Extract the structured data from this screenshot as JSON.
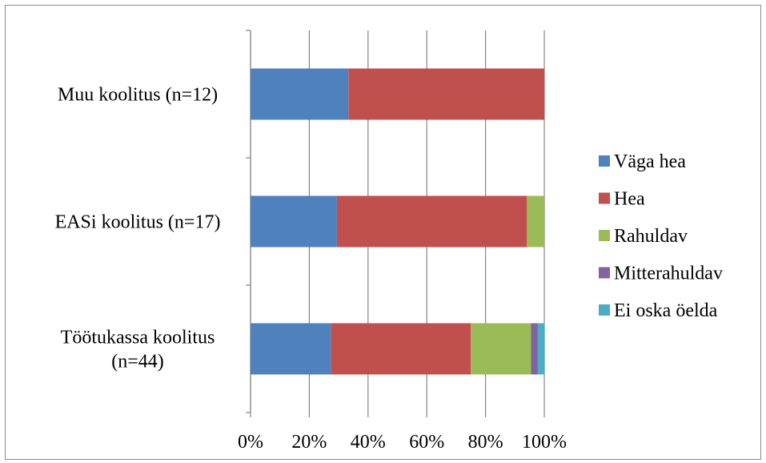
{
  "chart_data": {
    "type": "bar",
    "orientation": "horizontal",
    "stacked": "percent",
    "title": "",
    "xlabel": "",
    "ylabel": "",
    "xlim": [
      0,
      100
    ],
    "x_ticks": [
      "0%",
      "20%",
      "40%",
      "60%",
      "80%",
      "100%"
    ],
    "grid": "vertical major gridlines",
    "legend_position": "right",
    "categories": [
      [
        "Muu koolitus (n=12)"
      ],
      [
        "EASi koolitus  (n=17)"
      ],
      [
        "Töötukassa koolitus",
        "(n=44)"
      ]
    ],
    "series": [
      {
        "name": "Väga hea",
        "color": "#4F81BD",
        "values": [
          33.3,
          29.4,
          27.3
        ]
      },
      {
        "name": "Hea",
        "color": "#C0504D",
        "values": [
          66.7,
          64.7,
          47.7
        ]
      },
      {
        "name": "Rahuldav",
        "color": "#9BBB59",
        "values": [
          0,
          5.9,
          20.5
        ]
      },
      {
        "name": "Mitterahuldav",
        "color": "#8064A2",
        "values": [
          0,
          0,
          2.3
        ]
      },
      {
        "name": "Ei oska öelda",
        "color": "#4BACC6",
        "values": [
          0,
          0,
          2.3
        ]
      }
    ]
  }
}
